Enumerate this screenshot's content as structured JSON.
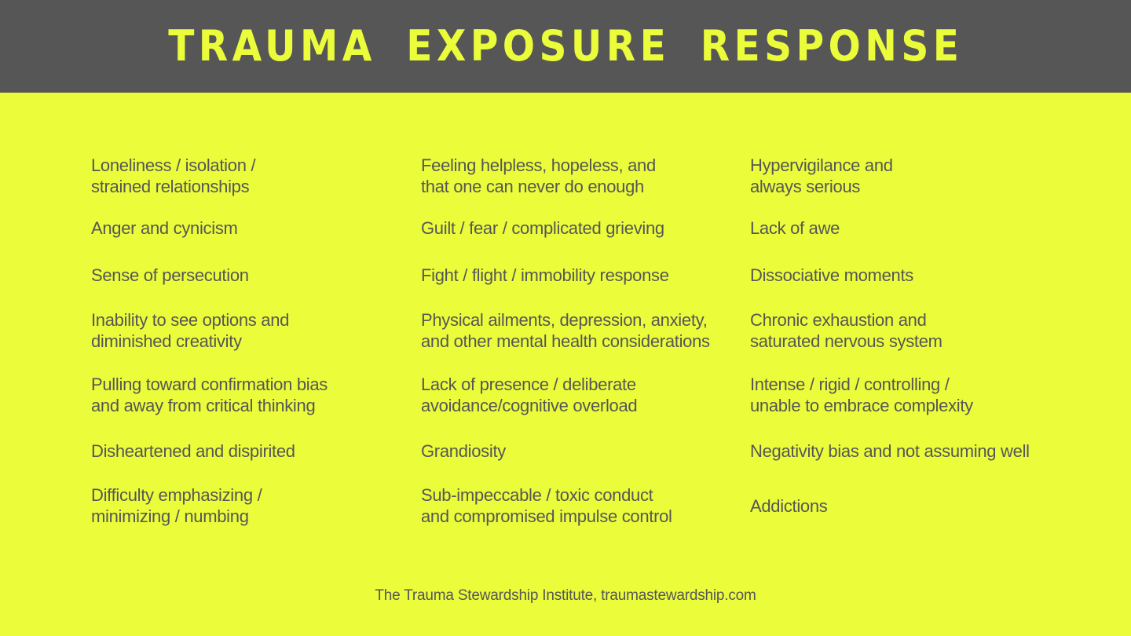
{
  "header": {
    "title": "TRAUMA EXPOSURE RESPONSE"
  },
  "columns": [
    {
      "items": [
        "Loneliness / isolation /\nstrained relationships",
        "Anger and cynicism",
        "Sense of persecution",
        "Inability to see options and\ndiminished creativity",
        "Pulling toward confirmation bias\nand away from critical thinking",
        "Disheartened and dispirited",
        "Difficulty emphasizing /\nminimizing / numbing"
      ]
    },
    {
      "items": [
        "Feeling helpless, hopeless, and\nthat one can never do enough",
        "Guilt / fear / complicated grieving",
        "Fight / flight / immobility response",
        "Physical ailments, depression, anxiety,\nand other mental health considerations",
        "Lack of presence / deliberate\navoidance/cognitive overload",
        "Grandiosity",
        "Sub-impeccable / toxic conduct\nand compromised impulse control"
      ]
    },
    {
      "items": [
        "Hypervigilance and\nalways serious",
        "Lack of awe",
        "Dissociative moments",
        "Chronic exhaustion and\nsaturated nervous system",
        "Intense / rigid / controlling /\nunable to embrace complexity",
        "Negativity bias and not assuming well",
        "Addictions"
      ]
    }
  ],
  "footer": {
    "credit": "The Trauma Stewardship Institute, traumastewardship.com"
  },
  "colors": {
    "background": "#ebfc3a",
    "header_background": "#565656",
    "text": "#565656"
  }
}
